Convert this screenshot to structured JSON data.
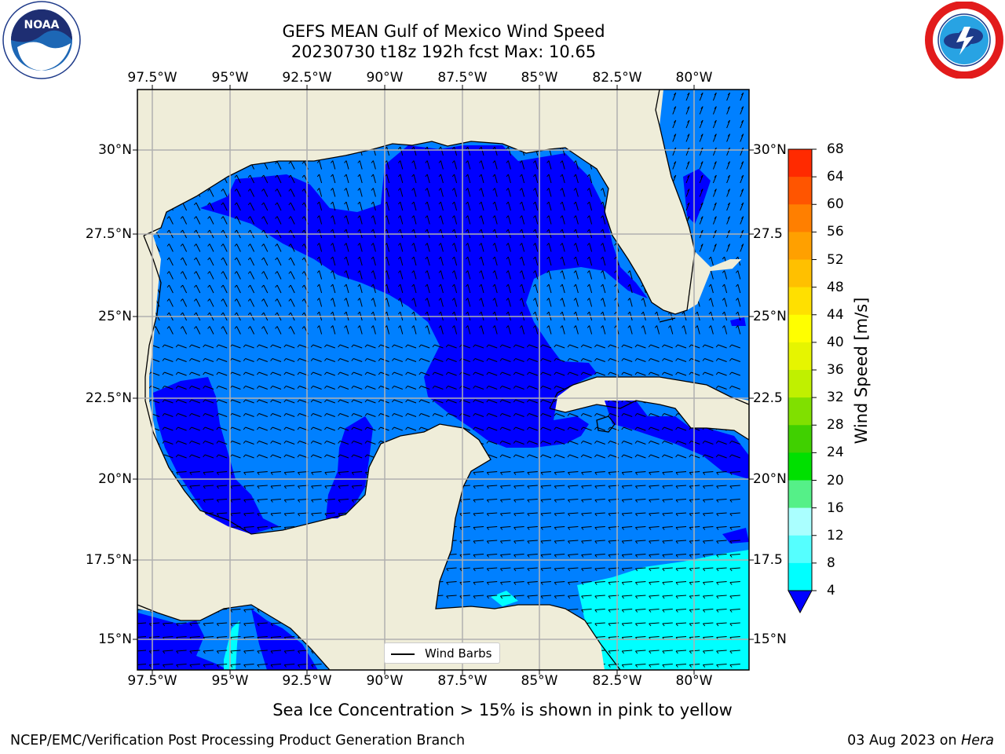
{
  "title_line1": "GEFS MEAN Gulf of Mexico Wind Speed",
  "title_line2": "20230730 t18z 192h fcst   Max: 10.65",
  "x_ticks": [
    "97.5°W",
    "95°W",
    "92.5°W",
    "90°W",
    "87.5°W",
    "85°W",
    "82.5°W",
    "80°W"
  ],
  "y_ticks_left": [
    "30°N",
    "27.5°N",
    "25°N",
    "22.5°N",
    "20°N",
    "17.5°N",
    "15°N"
  ],
  "y_ticks_right": [
    "30°N",
    "27.5",
    "25°N",
    "22.5",
    "20°N",
    "17.5",
    "15°N"
  ],
  "colorbar": {
    "label": "Wind Speed [m/s]",
    "ticks": [
      "68",
      "64",
      "60",
      "56",
      "52",
      "48",
      "44",
      "40",
      "36",
      "32",
      "28",
      "24",
      "20",
      "16",
      "12",
      "8",
      "4"
    ],
    "colors": [
      "#ff0000",
      "#ff2a00",
      "#ff5500",
      "#ff7f00",
      "#ffa000",
      "#ffc000",
      "#ffe000",
      "#ffff00",
      "#e6f500",
      "#c0f000",
      "#80e000",
      "#40d000",
      "#00e000",
      "#55f088",
      "#aaffff",
      "#55ffff",
      "#00ffff",
      "#0080ff"
    ],
    "under_color": "#0000ff"
  },
  "legend_label": "Wind Barbs",
  "footnote": "Sea Ice Concentration > 15% is shown in pink to yellow",
  "footer_left": "NCEP/EMC/Verification Post Processing Product Generation Branch",
  "footer_right_prefix": "03 Aug 2023 on ",
  "footer_right_host": "Hera",
  "noaa_logo_text": "NOAA",
  "colors": {
    "land": "#efedd9",
    "sea_light": "#0080ff",
    "sea_dark": "#0000ff",
    "sea_cyan": "#00ffff",
    "grid": "#b0b0b0"
  }
}
